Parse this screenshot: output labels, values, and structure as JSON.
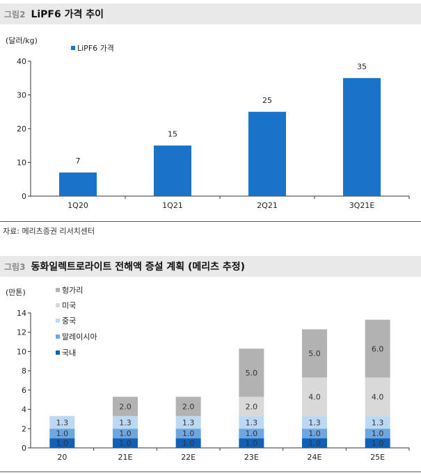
{
  "figure1": {
    "number": "그림2",
    "title": "LiPF6 가격 추이",
    "source": "자료: 메리츠증권 리서치센터"
  },
  "figure2": {
    "number": "그림3",
    "title": "동화일렉트로라이트 전해액 증설 계획 (메리츠 추정)"
  },
  "colors": {
    "chart1_bar": "#1a72c9",
    "chart2_domestic": "#1060b8",
    "chart2_malaysia": "#6ea6e0",
    "chart2_china": "#bcd8f3",
    "chart2_usa": "#d9d9d9",
    "chart2_hungary": "#b2b2b2",
    "header_bg": "#e9e9e9"
  },
  "chart_data": [
    {
      "type": "bar",
      "ylabel": "(달러/kg)",
      "categories": [
        "1Q20",
        "1Q21",
        "2Q21",
        "3Q21E"
      ],
      "series": [
        {
          "name": "LiPF6 가격",
          "values": [
            7,
            15,
            25,
            35
          ]
        }
      ],
      "ylim": [
        0,
        40
      ],
      "yticks": [
        0,
        10,
        20,
        30,
        40
      ],
      "legend": "top-left",
      "grid": false
    },
    {
      "type": "bar",
      "stacked": true,
      "ylabel": "(만톤)",
      "categories": [
        "20",
        "21E",
        "22E",
        "23E",
        "24E",
        "25E"
      ],
      "series": [
        {
          "name": "국내",
          "values": [
            1.0,
            1.0,
            1.0,
            1.0,
            1.0,
            1.0
          ],
          "labels": [
            "1.0",
            "1.0",
            "1.0",
            "1.0",
            "1.0",
            "1.0"
          ]
        },
        {
          "name": "말레이시아",
          "values": [
            1.0,
            1.0,
            1.0,
            1.0,
            1.0,
            1.0
          ],
          "labels": [
            "1.0",
            "1.0",
            "1.0",
            "1.0",
            "1.0",
            "1.0"
          ]
        },
        {
          "name": "중국",
          "values": [
            1.3,
            1.3,
            1.3,
            1.3,
            1.3,
            1.3
          ],
          "labels": [
            "1.3",
            "1.3",
            "1.3",
            "1.3",
            "1.3",
            "1.3"
          ]
        },
        {
          "name": "미국",
          "values": [
            0,
            0,
            0,
            2.0,
            4.0,
            4.0
          ],
          "labels": [
            "",
            "",
            "",
            "2.0",
            "4.0",
            "4.0"
          ]
        },
        {
          "name": "헝가리",
          "values": [
            0,
            2.0,
            2.0,
            5.0,
            5.0,
            6.0
          ],
          "labels": [
            "",
            "2.0",
            "2.0",
            "5.0",
            "5.0",
            "6.0"
          ]
        }
      ],
      "ylim": [
        0,
        14
      ],
      "yticks": [
        0,
        2,
        4,
        6,
        8,
        10,
        12,
        14
      ],
      "legend": "top-left",
      "grid": false
    }
  ]
}
